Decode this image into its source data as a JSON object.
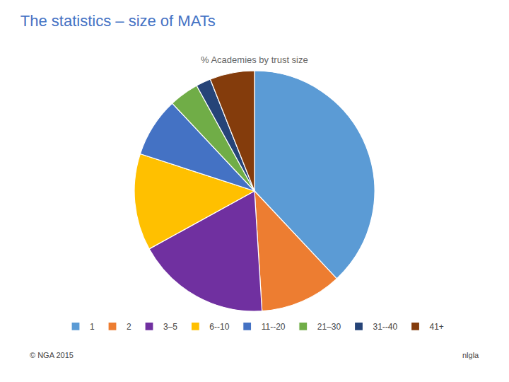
{
  "chart_data": {
    "type": "pie",
    "title": "The statistics – size of MATs",
    "subtitle": "% Academies by trust size",
    "categories": [
      "1",
      "2",
      "3–5",
      "6--10",
      "11--20",
      "21–30",
      "31--40",
      "41+"
    ],
    "values": [
      38,
      11,
      18,
      13,
      8,
      4,
      2,
      6
    ],
    "colors": [
      "#5B9BD5",
      "#ED7D31",
      "#7030A0",
      "#FFC000",
      "#4472C4",
      "#70AD47",
      "#264478",
      "#843C0C"
    ],
    "legend": "bottom",
    "annotations": [
      "© NGA 2015",
      "nlgla"
    ]
  }
}
